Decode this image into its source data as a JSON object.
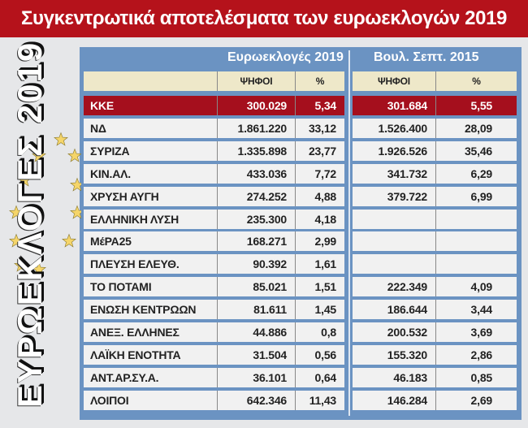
{
  "title": "Συγκεντρωτικά αποτελέσματα των ευρωεκλογών 2019",
  "side_label": "ΕΥΡΩΕΚΛΟΓΕΣ 2019",
  "colors": {
    "title_bg": "#b5121b",
    "panel": "#6b93c2",
    "highlight": "#a50f1d",
    "header_row": "#eee8c9",
    "stars": "#f5d56a"
  },
  "groups": {
    "left": "Ευρωεκλογές 2019",
    "right": "Βουλ. Σεπτ. 2015"
  },
  "headers": {
    "votes": "ΨΗΦΟΙ",
    "pct": "%"
  },
  "rows": [
    {
      "party": "ΚΚΕ",
      "votes2019": "300.029",
      "pct2019": "5,34",
      "votes2015": "301.684",
      "pct2015": "5,55",
      "highlight": true
    },
    {
      "party": "ΝΔ",
      "votes2019": "1.861.220",
      "pct2019": "33,12",
      "votes2015": "1.526.400",
      "pct2015": "28,09"
    },
    {
      "party": "ΣΥΡΙΖΑ",
      "votes2019": "1.335.898",
      "pct2019": "23,77",
      "votes2015": "1.926.526",
      "pct2015": "35,46"
    },
    {
      "party": "ΚΙΝ.ΑΛ.",
      "votes2019": "433.036",
      "pct2019": "7,72",
      "votes2015": "341.732",
      "pct2015": "6,29"
    },
    {
      "party": "ΧΡΥΣΗ ΑΥΓΗ",
      "votes2019": "274.252",
      "pct2019": "4,88",
      "votes2015": "379.722",
      "pct2015": "6,99"
    },
    {
      "party": "ΕΛΛΗΝΙΚΗ ΛΥΣΗ",
      "votes2019": "235.300",
      "pct2019": "4,18",
      "votes2015": "",
      "pct2015": ""
    },
    {
      "party": "ΜέΡΑ25",
      "votes2019": "168.271",
      "pct2019": "2,99",
      "votes2015": "",
      "pct2015": ""
    },
    {
      "party": "ΠΛΕΥΣΗ ΕΛΕΥΘ.",
      "votes2019": "90.392",
      "pct2019": "1,61",
      "votes2015": "",
      "pct2015": ""
    },
    {
      "party": "ΤΟ ΠΟΤΑΜΙ",
      "votes2019": "85.021",
      "pct2019": "1,51",
      "votes2015": "222.349",
      "pct2015": "4,09"
    },
    {
      "party": "ΕΝΩΣΗ ΚΕΝΤΡΩΩΝ",
      "votes2019": "81.611",
      "pct2019": "1,45",
      "votes2015": "186.644",
      "pct2015": "3,44"
    },
    {
      "party": "ΑΝΕΞ. ΕΛΛΗΝΕΣ",
      "votes2019": "44.886",
      "pct2019": "0,8",
      "votes2015": "200.532",
      "pct2015": "3,69"
    },
    {
      "party": "ΛΑΪΚΗ ΕΝΟΤΗΤΑ",
      "votes2019": "31.504",
      "pct2019": "0,56",
      "votes2015": "155.320",
      "pct2015": "2,86"
    },
    {
      "party": "ΑΝΤ.ΑΡ.ΣΥ.Α.",
      "votes2019": "36.101",
      "pct2019": "0,64",
      "votes2015": "46.183",
      "pct2015": "0,85"
    },
    {
      "party": "ΛΟΙΠΟΙ",
      "votes2019": "642.346",
      "pct2019": "11,43",
      "votes2015": "146.284",
      "pct2015": "2,69"
    }
  ]
}
